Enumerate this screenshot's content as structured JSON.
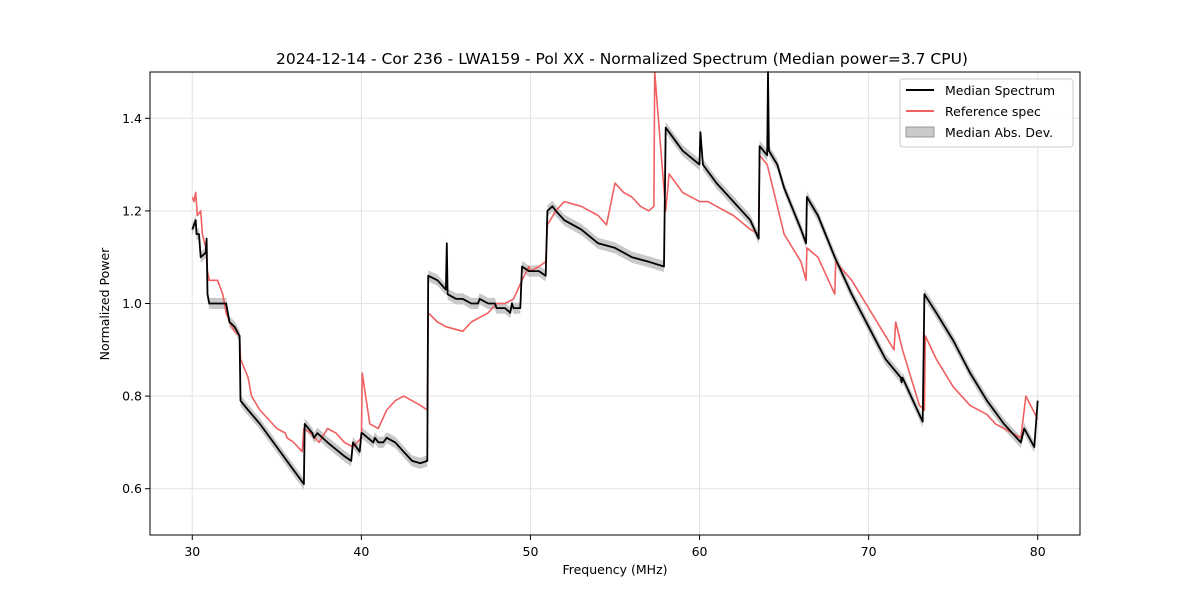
{
  "chart_data": {
    "type": "line",
    "title": "2024-12-14 - Cor 236 - LWA159 - Pol XX - Normalized Spectrum (Median power=3.7 CPU)",
    "xlabel": "Frequency (MHz)",
    "ylabel": "Normalized Power",
    "xlim": [
      27.5,
      82.5
    ],
    "ylim": [
      0.5,
      1.5
    ],
    "xticks": [
      30,
      40,
      50,
      60,
      70,
      80
    ],
    "yticks": [
      0.6,
      0.8,
      1.0,
      1.2,
      1.4
    ],
    "xtick_labels": [
      "30",
      "40",
      "50",
      "60",
      "70",
      "80"
    ],
    "ytick_labels": [
      "0.6",
      "0.8",
      "1.0",
      "1.2",
      "1.4"
    ],
    "grid": true,
    "legend_position": "top-right",
    "series": [
      {
        "name": "Median Spectrum",
        "color": "#000000",
        "x": [
          30.0,
          30.2,
          30.25,
          30.4,
          30.5,
          30.8,
          30.85,
          30.9,
          31.0,
          31.5,
          32.0,
          32.2,
          32.5,
          32.8,
          32.85,
          33.3,
          34.0,
          35.0,
          36.0,
          36.6,
          36.65,
          37.1,
          37.2,
          37.4,
          38.0,
          39.0,
          39.4,
          39.5,
          39.9,
          40.0,
          40.05,
          40.7,
          40.8,
          41.0,
          41.3,
          41.5,
          42.0,
          42.5,
          43.0,
          43.5,
          43.9,
          43.95,
          44.5,
          45.0,
          45.05,
          45.1,
          45.6,
          46.0,
          46.5,
          46.9,
          47.0,
          47.5,
          47.9,
          48.0,
          48.5,
          48.8,
          48.9,
          49.0,
          49.4,
          49.5,
          49.9,
          50.0,
          50.5,
          50.9,
          51.0,
          51.3,
          51.5,
          52.0,
          53.0,
          54.0,
          55.0,
          56.0,
          57.0,
          57.9,
          58.0,
          58.2,
          59.0,
          60.0,
          60.05,
          60.2,
          61.0,
          62.0,
          63.0,
          63.5,
          63.55,
          64.0,
          64.05,
          64.1,
          64.6,
          65.0,
          66.0,
          66.3,
          66.35,
          67.0,
          68.0,
          69.0,
          70.0,
          71.0,
          71.9,
          71.95,
          72.0,
          73.0,
          73.2,
          73.3,
          74.0,
          75.0,
          76.0,
          77.0,
          78.0,
          79.0,
          79.2,
          79.8,
          80.0
        ],
        "values": [
          1.16,
          1.18,
          1.15,
          1.15,
          1.1,
          1.11,
          1.14,
          1.02,
          1.0,
          1.0,
          1.0,
          0.96,
          0.95,
          0.93,
          0.79,
          0.77,
          0.74,
          0.69,
          0.64,
          0.61,
          0.74,
          0.72,
          0.71,
          0.72,
          0.7,
          0.67,
          0.66,
          0.7,
          0.68,
          0.72,
          0.72,
          0.7,
          0.71,
          0.7,
          0.7,
          0.71,
          0.7,
          0.68,
          0.66,
          0.655,
          0.66,
          1.06,
          1.05,
          1.03,
          1.13,
          1.02,
          1.01,
          1.01,
          1.0,
          1.0,
          1.01,
          1.0,
          1.0,
          0.99,
          0.99,
          0.98,
          1.0,
          0.99,
          0.99,
          1.08,
          1.07,
          1.07,
          1.07,
          1.06,
          1.2,
          1.21,
          1.2,
          1.18,
          1.16,
          1.13,
          1.12,
          1.1,
          1.09,
          1.08,
          1.38,
          1.37,
          1.33,
          1.3,
          1.37,
          1.3,
          1.26,
          1.22,
          1.18,
          1.14,
          1.34,
          1.32,
          1.5,
          1.33,
          1.3,
          1.25,
          1.16,
          1.13,
          1.23,
          1.19,
          1.1,
          1.02,
          0.95,
          0.88,
          0.84,
          0.83,
          0.84,
          0.76,
          0.745,
          1.02,
          0.98,
          0.92,
          0.85,
          0.79,
          0.74,
          0.7,
          0.73,
          0.69,
          0.79
        ]
      },
      {
        "name": "Reference spec",
        "color": "#f06060",
        "x": [
          30.0,
          30.1,
          30.2,
          30.3,
          30.5,
          30.6,
          30.8,
          30.9,
          31.0,
          31.3,
          31.5,
          31.8,
          32.0,
          32.2,
          32.5,
          32.8,
          32.85,
          33.3,
          33.5,
          34.0,
          35.0,
          35.5,
          35.6,
          36.0,
          36.5,
          36.6,
          37.0,
          37.5,
          38.0,
          38.5,
          39.0,
          39.5,
          40.0,
          40.05,
          40.5,
          41.0,
          41.5,
          42.0,
          42.5,
          43.0,
          43.5,
          43.9,
          43.95,
          44.5,
          45.0,
          46.0,
          46.5,
          47.0,
          47.5,
          48.0,
          48.5,
          49.0,
          49.5,
          49.9,
          50.0,
          50.5,
          50.9,
          51.0,
          51.5,
          52.0,
          53.0,
          54.0,
          54.5,
          55.0,
          55.5,
          56.0,
          56.5,
          57.0,
          57.3,
          57.35,
          58.0,
          58.2,
          59.0,
          60.0,
          60.5,
          61.0,
          62.0,
          63.0,
          63.5,
          63.55,
          64.0,
          65.0,
          66.0,
          66.3,
          66.35,
          67.0,
          68.0,
          68.05,
          69.0,
          70.0,
          71.0,
          71.5,
          71.6,
          72.0,
          73.0,
          73.3,
          73.35,
          74.0,
          75.0,
          76.0,
          77.0,
          77.5,
          78.0,
          79.0,
          79.3,
          80.0
        ],
        "values": [
          1.23,
          1.22,
          1.24,
          1.19,
          1.2,
          1.15,
          1.12,
          1.07,
          1.05,
          1.05,
          1.05,
          1.02,
          0.98,
          0.96,
          0.94,
          0.93,
          0.88,
          0.84,
          0.8,
          0.77,
          0.73,
          0.72,
          0.71,
          0.7,
          0.68,
          0.73,
          0.72,
          0.7,
          0.73,
          0.72,
          0.7,
          0.69,
          0.71,
          0.85,
          0.74,
          0.73,
          0.77,
          0.79,
          0.8,
          0.79,
          0.78,
          0.77,
          0.98,
          0.96,
          0.95,
          0.94,
          0.96,
          0.97,
          0.98,
          1.0,
          1.0,
          1.01,
          1.05,
          1.08,
          1.07,
          1.08,
          1.09,
          1.17,
          1.2,
          1.22,
          1.21,
          1.19,
          1.17,
          1.26,
          1.24,
          1.23,
          1.21,
          1.2,
          1.21,
          1.5,
          1.2,
          1.28,
          1.24,
          1.22,
          1.22,
          1.21,
          1.19,
          1.16,
          1.15,
          1.32,
          1.3,
          1.15,
          1.09,
          1.05,
          1.12,
          1.1,
          1.02,
          1.09,
          1.05,
          0.99,
          0.93,
          0.9,
          0.96,
          0.9,
          0.78,
          0.77,
          0.93,
          0.88,
          0.82,
          0.78,
          0.76,
          0.74,
          0.73,
          0.71,
          0.8,
          0.75
        ]
      }
    ],
    "band": {
      "name": "Median Abs. Dev.",
      "color": "#bbbbbb",
      "halfwidth": 0.012
    }
  }
}
